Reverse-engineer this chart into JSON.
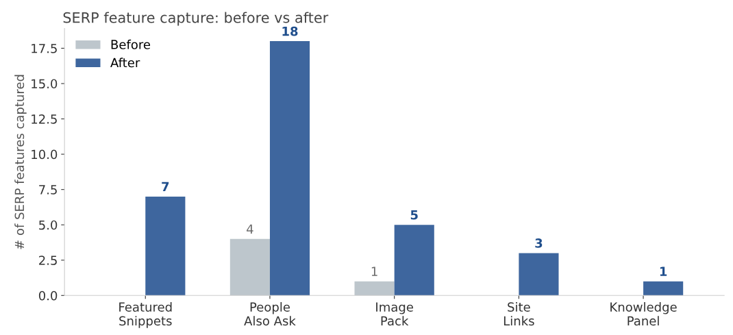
{
  "chart_data": {
    "type": "bar",
    "title": "SERP feature capture: before vs after",
    "ylabel": "# of SERP features captured",
    "categories": [
      "Featured\nSnippets",
      "People\nAlso Ask",
      "Image\nPack",
      "Site\nLinks",
      "Knowledge\nPanel"
    ],
    "series": [
      {
        "name": "Before",
        "color": "#bdc6cc",
        "values": [
          0,
          4,
          1,
          0,
          0
        ],
        "value_labels": [
          null,
          "4",
          "1",
          null,
          null
        ]
      },
      {
        "name": "After",
        "color": "#3e669e",
        "values": [
          7,
          18,
          5,
          3,
          1
        ],
        "value_labels": [
          "7",
          "18",
          "5",
          "3",
          "1"
        ]
      }
    ],
    "ylim": [
      0,
      18.9
    ],
    "yticks": [
      {
        "value": 0,
        "label": "0.0"
      },
      {
        "value": 2.5,
        "label": "2.5"
      },
      {
        "value": 5,
        "label": "5.0"
      },
      {
        "value": 7.5,
        "label": "7.5"
      },
      {
        "value": 10,
        "label": "10.0"
      },
      {
        "value": 12.5,
        "label": "12.5"
      },
      {
        "value": 15,
        "label": "15.0"
      },
      {
        "value": 17.5,
        "label": "17.5"
      }
    ],
    "grid": false,
    "legend": "top left"
  }
}
